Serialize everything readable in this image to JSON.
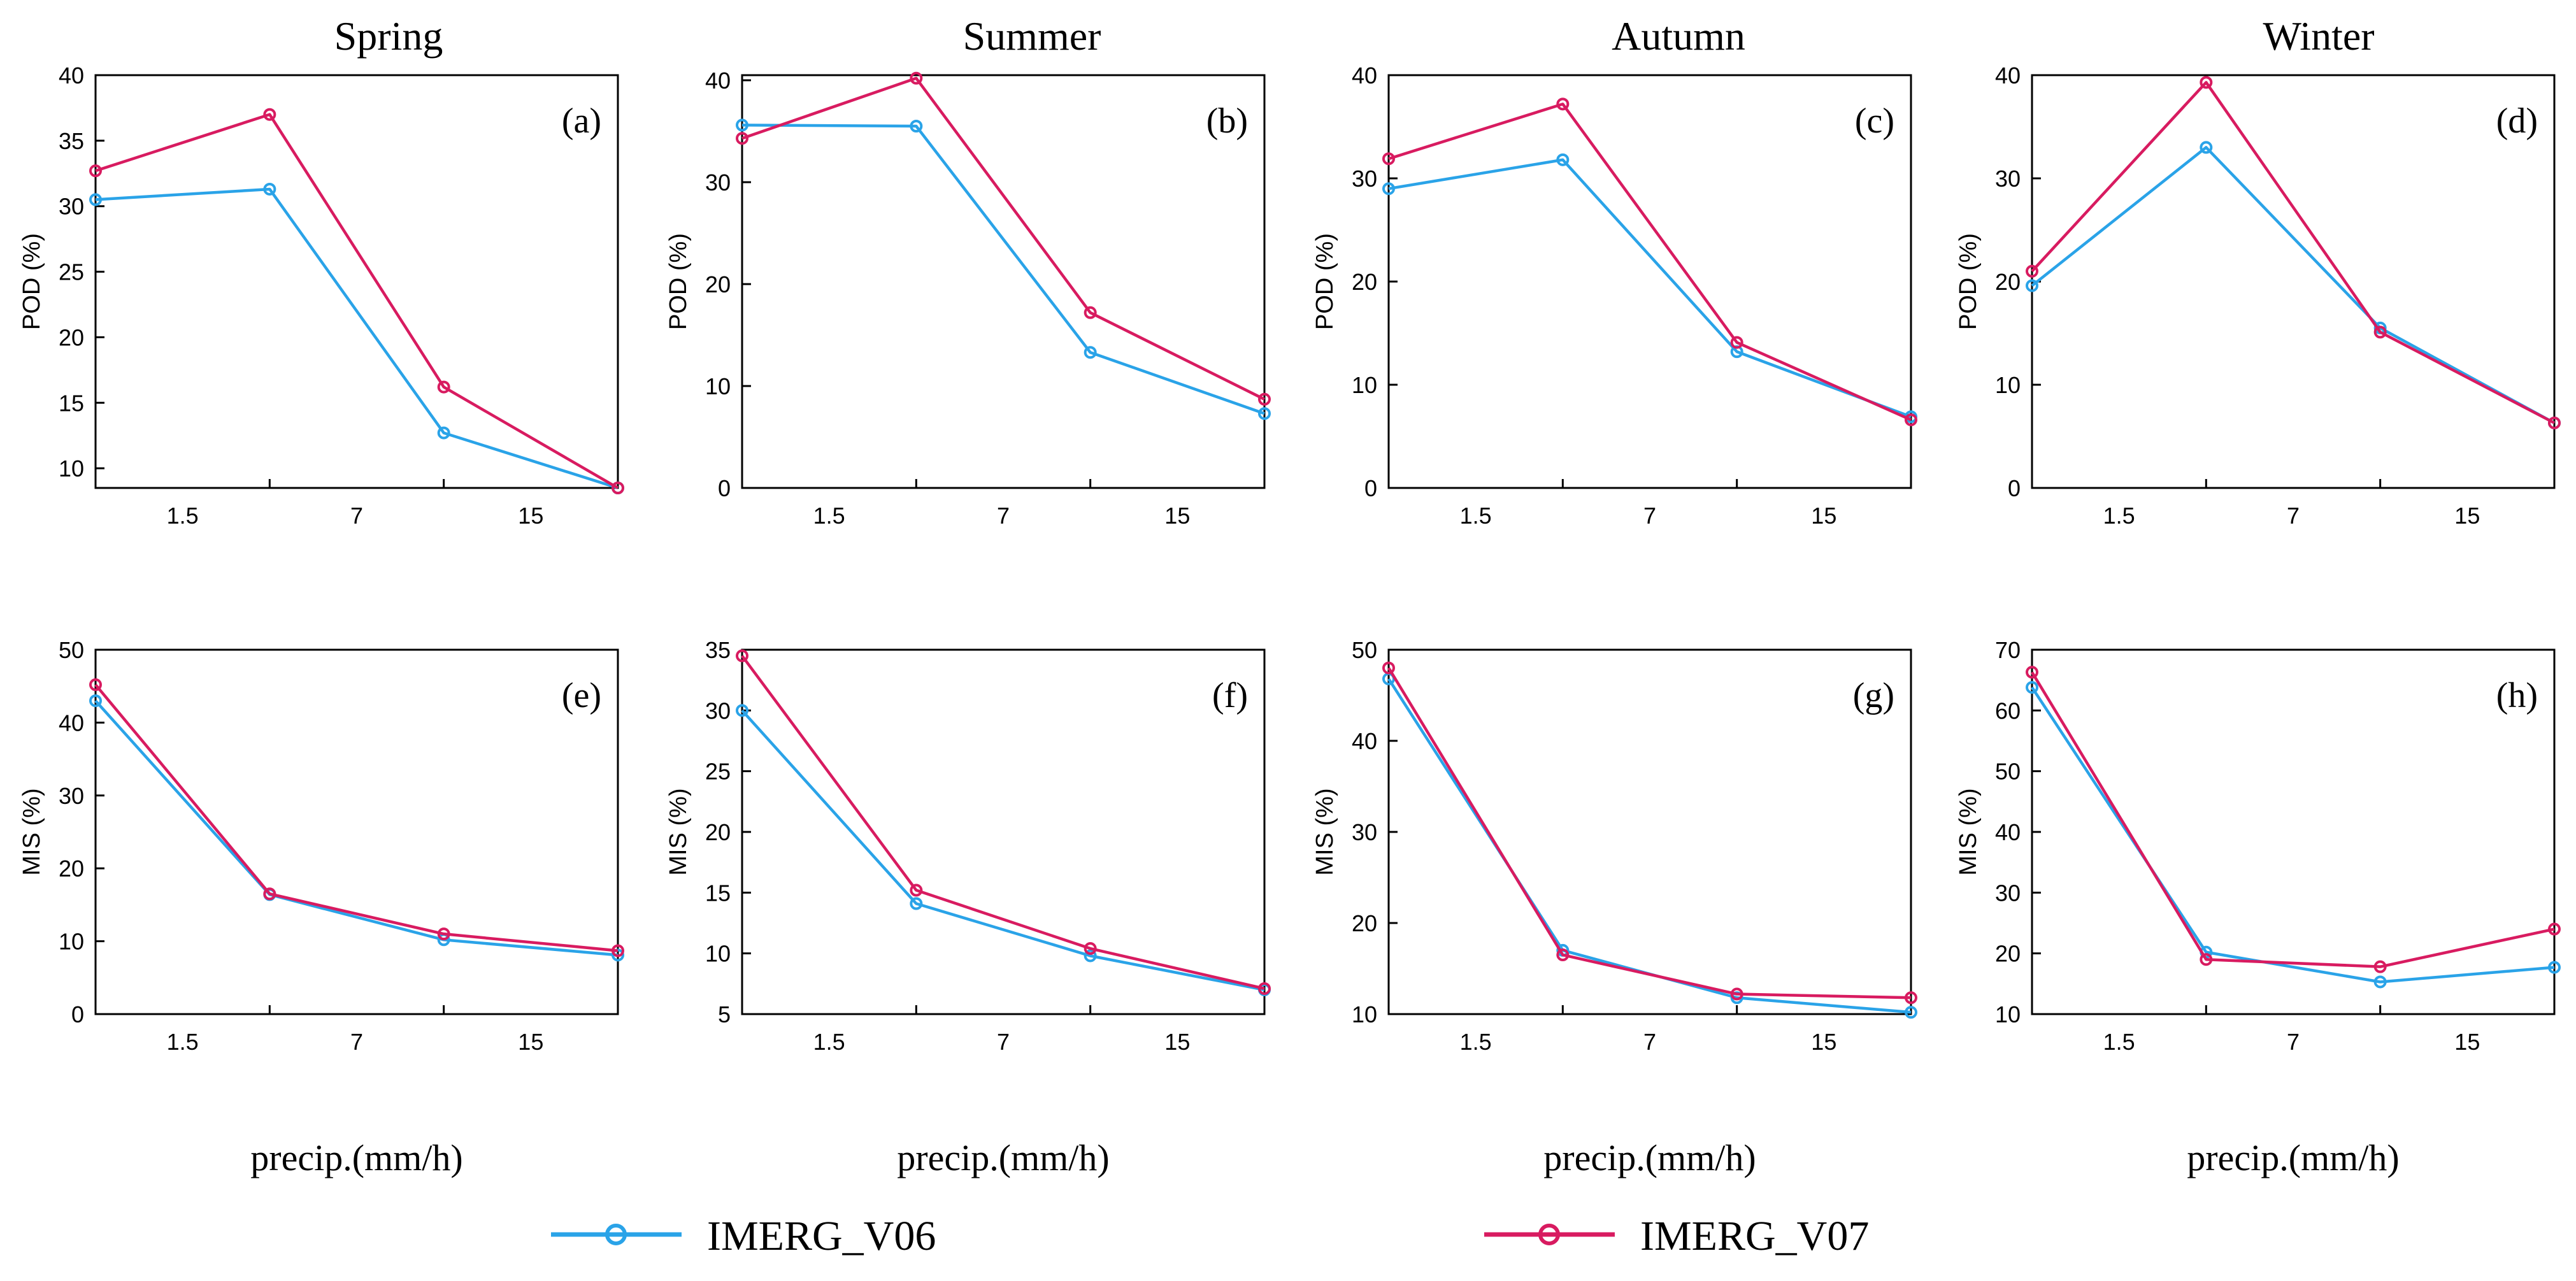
{
  "colors": {
    "v06": "#2aa3e8",
    "v07": "#d81b60",
    "axis": "#000000"
  },
  "legend": {
    "v06": "IMERG_V06",
    "v07": "IMERG_V07"
  },
  "chart_data": [
    {
      "type": "line",
      "season": "Spring",
      "tag": "(a)",
      "ylabel": "POD (%)",
      "xlabel": "",
      "categories": [
        "",
        "1.5",
        "7",
        "15"
      ],
      "ylim": [
        8.5,
        40
      ],
      "yticks": [
        10,
        15,
        20,
        25,
        30,
        35,
        40
      ],
      "series": [
        {
          "name": "IMERG_V06",
          "values": [
            30.5,
            31.3,
            12.7,
            8.5
          ]
        },
        {
          "name": "IMERG_V07",
          "values": [
            32.7,
            37.0,
            16.2,
            8.5
          ]
        }
      ]
    },
    {
      "type": "line",
      "season": "Summer",
      "tag": "(b)",
      "ylabel": "POD (%)",
      "xlabel": "",
      "categories": [
        "",
        "1.5",
        "7",
        "15"
      ],
      "ylim": [
        0,
        40.5
      ],
      "yticks": [
        0,
        10,
        20,
        30,
        40
      ],
      "series": [
        {
          "name": "IMERG_V06",
          "values": [
            35.6,
            35.5,
            13.3,
            7.3
          ]
        },
        {
          "name": "IMERG_V07",
          "values": [
            34.3,
            40.2,
            17.2,
            8.7
          ]
        }
      ]
    },
    {
      "type": "line",
      "season": "Autumn",
      "tag": "(c)",
      "ylabel": "POD (%)",
      "xlabel": "",
      "categories": [
        "",
        "1.5",
        "7",
        "15"
      ],
      "ylim": [
        0,
        40
      ],
      "yticks": [
        0,
        10,
        20,
        30,
        40
      ],
      "series": [
        {
          "name": "IMERG_V06",
          "values": [
            29.0,
            31.8,
            13.2,
            6.9
          ]
        },
        {
          "name": "IMERG_V07",
          "values": [
            31.9,
            37.2,
            14.1,
            6.6
          ]
        }
      ]
    },
    {
      "type": "line",
      "season": "Winter",
      "tag": "(d)",
      "ylabel": "POD (%)",
      "xlabel": "",
      "categories": [
        "",
        "1.5",
        "7",
        "15"
      ],
      "ylim": [
        0,
        40
      ],
      "yticks": [
        0,
        10,
        20,
        30,
        40
      ],
      "series": [
        {
          "name": "IMERG_V06",
          "values": [
            19.6,
            33.0,
            15.5,
            6.3
          ]
        },
        {
          "name": "IMERG_V07",
          "values": [
            21.0,
            39.3,
            15.1,
            6.3
          ]
        }
      ]
    },
    {
      "type": "line",
      "season": "Spring",
      "tag": "(e)",
      "ylabel": "MIS (%)",
      "xlabel": "precip.(mm/h)",
      "categories": [
        "",
        "1.5",
        "7",
        "15"
      ],
      "ylim": [
        0,
        50
      ],
      "yticks": [
        0,
        10,
        20,
        30,
        40,
        50
      ],
      "series": [
        {
          "name": "IMERG_V06",
          "values": [
            43.0,
            16.4,
            10.2,
            8.1
          ]
        },
        {
          "name": "IMERG_V07",
          "values": [
            45.2,
            16.5,
            11.0,
            8.7
          ]
        }
      ]
    },
    {
      "type": "line",
      "season": "Summer",
      "tag": "(f)",
      "ylabel": "MIS (%)",
      "xlabel": "precip.(mm/h)",
      "categories": [
        "",
        "1.5",
        "7",
        "15"
      ],
      "ylim": [
        5,
        35
      ],
      "yticks": [
        5,
        10,
        15,
        20,
        25,
        30,
        35
      ],
      "series": [
        {
          "name": "IMERG_V06",
          "values": [
            30.0,
            14.1,
            9.8,
            7.0
          ]
        },
        {
          "name": "IMERG_V07",
          "values": [
            34.5,
            15.2,
            10.4,
            7.1
          ]
        }
      ]
    },
    {
      "type": "line",
      "season": "Autumn",
      "tag": "(g)",
      "ylabel": "MIS (%)",
      "xlabel": "precip.(mm/h)",
      "categories": [
        "",
        "1.5",
        "7",
        "15"
      ],
      "ylim": [
        10,
        50
      ],
      "yticks": [
        10,
        20,
        30,
        40,
        50
      ],
      "series": [
        {
          "name": "IMERG_V06",
          "values": [
            46.8,
            17.0,
            11.8,
            10.2
          ]
        },
        {
          "name": "IMERG_V07",
          "values": [
            48.0,
            16.5,
            12.2,
            11.8
          ]
        }
      ]
    },
    {
      "type": "line",
      "season": "Winter",
      "tag": "(h)",
      "ylabel": "MIS (%)",
      "xlabel": "precip.(mm/h)",
      "categories": [
        "",
        "1.5",
        "7",
        "15"
      ],
      "ylim": [
        10,
        70
      ],
      "yticks": [
        10,
        20,
        30,
        40,
        50,
        60,
        70
      ],
      "series": [
        {
          "name": "IMERG_V06",
          "values": [
            63.8,
            20.2,
            15.3,
            17.7
          ]
        },
        {
          "name": "IMERG_V07",
          "values": [
            66.3,
            19.0,
            17.8,
            24.0
          ]
        }
      ]
    }
  ]
}
